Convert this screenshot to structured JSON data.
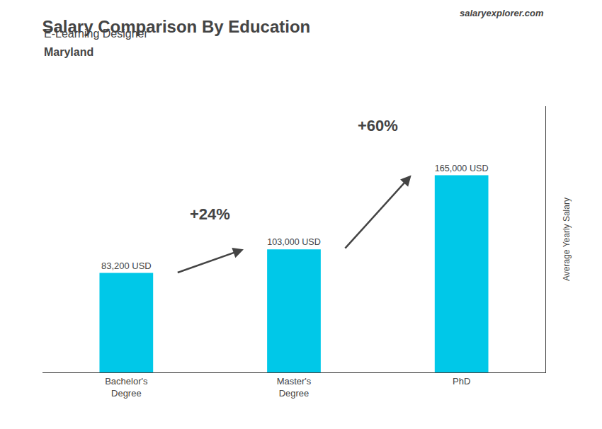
{
  "chart_data": {
    "type": "bar",
    "title": "Salary Comparison By Education",
    "subtitle": [
      "E-Learning Designer",
      "Maryland"
    ],
    "categories": [
      "Bachelor's\nDegree",
      "Master's\nDegree",
      "PhD"
    ],
    "values": [
      83200,
      103000,
      165000
    ],
    "value_labels": [
      "83,200 USD",
      "103,000 USD",
      "165,000 USD"
    ],
    "data_labels": true,
    "color": "#00c8e8",
    "ylabel": "Average Yearly Salary",
    "ylim": [
      0,
      222750
    ],
    "tick_labels": "x",
    "grid": false,
    "annotations": [
      {
        "text": "+24%",
        "from": "Bachelor's\nDegree",
        "to": "Master's\nDegree"
      },
      {
        "text": "+60%",
        "from": "Master's\nDegree",
        "to": "PhD"
      },
      {
        "text": "salaryexplorer.com"
      }
    ]
  }
}
